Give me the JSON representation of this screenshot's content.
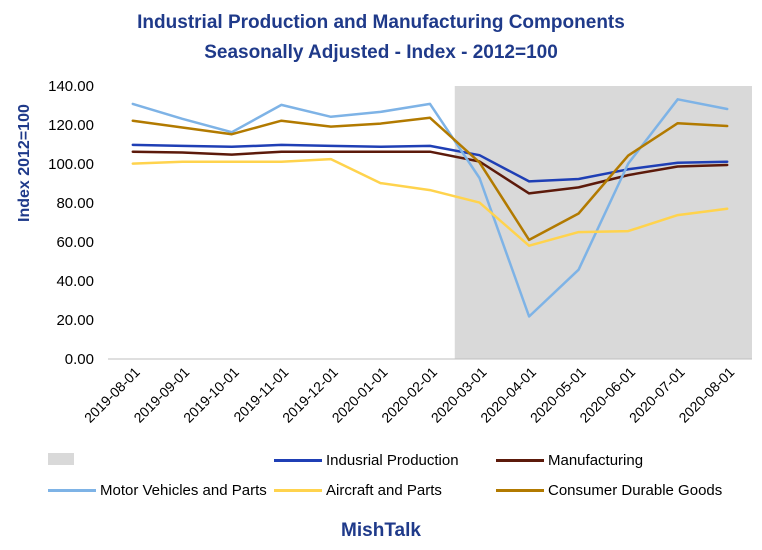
{
  "chart_data": {
    "type": "line",
    "title": "Industrial Production and Manufacturing Components",
    "subtitle": "Seasonally Adjusted - Index - 2012=100",
    "ylabel": "Index 2012=100",
    "xlabel": "",
    "ylim": [
      0,
      140
    ],
    "yticks": [
      "0.00",
      "20.00",
      "40.00",
      "60.00",
      "80.00",
      "100.00",
      "120.00",
      "140.00"
    ],
    "categories": [
      "2019-08-01",
      "2019-09-01",
      "2019-10-01",
      "2019-11-01",
      "2019-12-01",
      "2020-01-01",
      "2020-02-01",
      "2020-03-01",
      "2020-04-01",
      "2020-05-01",
      "2020-06-01",
      "2020-07-01",
      "2020-08-01"
    ],
    "shaded_region": {
      "from": "2020-03-01",
      "to": "2020-08-01",
      "color": "#d9d9d9"
    },
    "grid": false,
    "legend_position": "bottom",
    "series": [
      {
        "name": "Indusrial Production",
        "color": "#1f3fb5",
        "values": [
          109.8,
          109.3,
          108.8,
          109.8,
          109.3,
          108.8,
          109.3,
          104.5,
          91.1,
          92.3,
          97.3,
          100.6,
          101.2
        ]
      },
      {
        "name": "Manufacturing",
        "color": "#5c1a0b",
        "values": [
          106.3,
          105.9,
          104.8,
          106.3,
          106.3,
          106.3,
          106.3,
          101.3,
          84.9,
          88.0,
          94.3,
          98.7,
          99.5
        ]
      },
      {
        "name": "Motor Vehicles and Parts",
        "color": "#7eb3e6",
        "values": [
          130.8,
          123.2,
          116.3,
          130.3,
          124.2,
          126.7,
          130.8,
          92.8,
          21.8,
          45.8,
          100.2,
          133.2,
          128.2
        ]
      },
      {
        "name": "Aircraft and Parts",
        "color": "#ffd34d",
        "values": [
          100.2,
          101.2,
          101.2,
          101.2,
          102.5,
          90.2,
          86.6,
          80.2,
          58.1,
          65.1,
          65.6,
          73.8,
          77.1
        ]
      },
      {
        "name": "Consumer Durable Goods",
        "color": "#b27a00",
        "values": [
          122.2,
          118.7,
          115.3,
          122.2,
          119.2,
          120.7,
          123.7,
          100.8,
          61.1,
          74.6,
          104.3,
          120.9,
          119.5
        ]
      }
    ]
  },
  "footer": "MishTalk"
}
